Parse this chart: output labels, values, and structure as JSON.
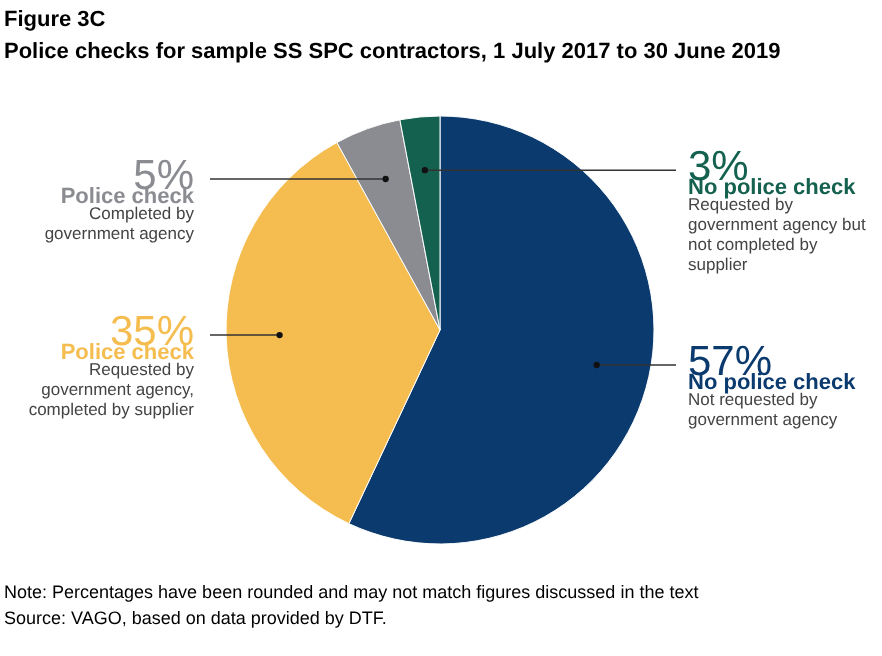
{
  "chart_data": {
    "type": "pie",
    "title": "Figure 3C",
    "subtitle": "Police checks for sample SS SPC contractors, 1 July 2017 to 30 June 2019",
    "categories": [
      "No police check",
      "Police check",
      "Police check",
      "No police check"
    ],
    "values": [
      57,
      35,
      5,
      3
    ],
    "value_labels": [
      "57%",
      "35%",
      "5%",
      "3%"
    ],
    "colors": [
      "#0b3a6e",
      "#f5bd4f",
      "#8a8c92",
      "#15614f"
    ],
    "annotations": [
      "Not requested by government agency",
      "Requested by government agency, completed by supplier",
      "Completed by government agency",
      "Requested by government agency but not completed by supplier",
      "Note: Percentages have been rounded and may not match figures discussed in the text",
      "Source: VAGO, based on data provided by DTF."
    ]
  }
}
